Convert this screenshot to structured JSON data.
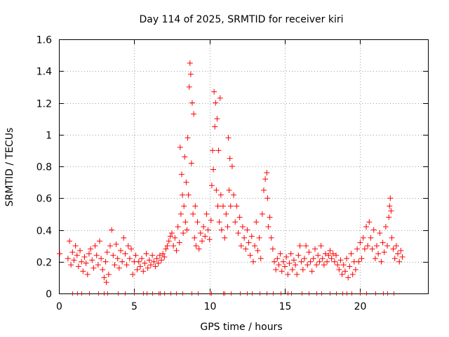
{
  "chart_data": {
    "type": "scatter",
    "title": "Day 114 of 2025, SRMTID for receiver kiri",
    "xlabel": "GPS time / hours",
    "ylabel": "SRMTID / TECUs",
    "xlim": [
      0,
      24.5
    ],
    "ylim": [
      0,
      1.6
    ],
    "x_ticks": [
      0,
      5,
      10,
      15,
      20
    ],
    "x_tick_labels": [
      "0",
      "5",
      "10",
      "15",
      "20"
    ],
    "y_ticks": [
      0,
      0.2,
      0.4,
      0.6,
      0.8,
      1.0,
      1.2,
      1.4,
      1.6
    ],
    "y_tick_labels": [
      "0",
      "0.2",
      "0.4",
      "0.6",
      "0.8",
      "1",
      "1.2",
      "1.4",
      "1.6"
    ],
    "grid": true,
    "marker": "+",
    "color": "#ff0000",
    "series": [
      {
        "name": "SRMTID",
        "points": [
          [
            0.05,
            0.25
          ],
          [
            0.6,
            0.22
          ],
          [
            0.7,
            0.33
          ],
          [
            0.8,
            0.18
          ],
          [
            0.9,
            0.26
          ],
          [
            1.0,
            0.21
          ],
          [
            1.1,
            0.3
          ],
          [
            1.2,
            0.24
          ],
          [
            1.3,
            0.17
          ],
          [
            1.4,
            0.27
          ],
          [
            1.5,
            0.2
          ],
          [
            1.6,
            0.14
          ],
          [
            1.7,
            0.23
          ],
          [
            1.8,
            0.19
          ],
          [
            1.9,
            0.12
          ],
          [
            2.0,
            0.25
          ],
          [
            2.1,
            0.28
          ],
          [
            2.2,
            0.21
          ],
          [
            2.3,
            0.16
          ],
          [
            2.4,
            0.3
          ],
          [
            2.5,
            0.24
          ],
          [
            2.6,
            0.18
          ],
          [
            2.7,
            0.33
          ],
          [
            2.8,
            0.22
          ],
          [
            2.9,
            0.15
          ],
          [
            3.0,
            0.1
          ],
          [
            3.1,
            0.2
          ],
          [
            3.15,
            0.07
          ],
          [
            3.2,
            0.26
          ],
          [
            3.3,
            0.12
          ],
          [
            3.4,
            0.3
          ],
          [
            3.5,
            0.4
          ],
          [
            3.6,
            0.24
          ],
          [
            3.7,
            0.18
          ],
          [
            3.8,
            0.31
          ],
          [
            3.9,
            0.22
          ],
          [
            4.0,
            0.16
          ],
          [
            4.1,
            0.27
          ],
          [
            4.2,
            0.2
          ],
          [
            4.3,
            0.35
          ],
          [
            4.4,
            0.25
          ],
          [
            4.5,
            0.18
          ],
          [
            4.6,
            0.3
          ],
          [
            4.7,
            0.22
          ],
          [
            4.8,
            0.28
          ],
          [
            4.9,
            0.12
          ],
          [
            5.0,
            0.2
          ],
          [
            5.1,
            0.24
          ],
          [
            5.2,
            0.15
          ],
          [
            5.3,
            0.2
          ],
          [
            5.4,
            0.17
          ],
          [
            5.5,
            0.22
          ],
          [
            5.6,
            0.14
          ],
          [
            5.7,
            0.19
          ],
          [
            5.8,
            0.25
          ],
          [
            5.9,
            0.16
          ],
          [
            6.0,
            0.21
          ],
          [
            6.1,
            0.18
          ],
          [
            6.2,
            0.24
          ],
          [
            6.3,
            0.2
          ],
          [
            6.4,
            0.17
          ],
          [
            6.5,
            0.22
          ],
          [
            6.6,
            0.19
          ],
          [
            6.7,
            0.24
          ],
          [
            6.8,
            0.21
          ],
          [
            6.9,
            0.25
          ],
          [
            7.0,
            0.23
          ],
          [
            7.1,
            0.28
          ],
          [
            7.2,
            0.3
          ],
          [
            7.3,
            0.33
          ],
          [
            7.4,
            0.36
          ],
          [
            7.5,
            0.38
          ],
          [
            7.6,
            0.3
          ],
          [
            7.7,
            0.35
          ],
          [
            7.8,
            0.27
          ],
          [
            7.9,
            0.42
          ],
          [
            8.0,
            0.32
          ],
          [
            8.05,
            0.92
          ],
          [
            8.1,
            0.5
          ],
          [
            8.15,
            0.75
          ],
          [
            8.2,
            0.62
          ],
          [
            8.25,
            0.38
          ],
          [
            8.3,
            0.55
          ],
          [
            8.35,
            0.86
          ],
          [
            8.4,
            0.45
          ],
          [
            8.45,
            0.7
          ],
          [
            8.5,
            0.4
          ],
          [
            8.55,
            0.98
          ],
          [
            8.6,
            0.62
          ],
          [
            8.65,
            1.3
          ],
          [
            8.7,
            1.45
          ],
          [
            8.75,
            1.38
          ],
          [
            8.8,
            0.82
          ],
          [
            8.85,
            1.2
          ],
          [
            8.9,
            0.5
          ],
          [
            8.95,
            1.13
          ],
          [
            9.0,
            0.35
          ],
          [
            9.05,
            0.55
          ],
          [
            9.1,
            0.3
          ],
          [
            9.2,
            0.45
          ],
          [
            9.3,
            0.28
          ],
          [
            9.4,
            0.38
          ],
          [
            9.5,
            0.33
          ],
          [
            9.6,
            0.42
          ],
          [
            9.7,
            0.36
          ],
          [
            9.8,
            0.5
          ],
          [
            9.9,
            0.4
          ],
          [
            10.0,
            0.34
          ],
          [
            10.1,
            0.46
          ],
          [
            10.15,
            0.68
          ],
          [
            10.2,
            0.9
          ],
          [
            10.25,
            0.78
          ],
          [
            10.3,
            1.27
          ],
          [
            10.35,
            1.05
          ],
          [
            10.4,
            1.2
          ],
          [
            10.45,
            0.65
          ],
          [
            10.5,
            1.1
          ],
          [
            10.55,
            0.55
          ],
          [
            10.6,
            0.9
          ],
          [
            10.65,
            0.45
          ],
          [
            10.7,
            1.23
          ],
          [
            10.75,
            0.62
          ],
          [
            10.8,
            0.4
          ],
          [
            10.9,
            0.55
          ],
          [
            11.0,
            0.35
          ],
          [
            11.1,
            0.5
          ],
          [
            11.2,
            0.42
          ],
          [
            11.25,
            0.98
          ],
          [
            11.3,
            0.65
          ],
          [
            11.35,
            0.85
          ],
          [
            11.4,
            0.55
          ],
          [
            11.5,
            0.8
          ],
          [
            11.6,
            0.62
          ],
          [
            11.7,
            0.45
          ],
          [
            11.8,
            0.55
          ],
          [
            11.9,
            0.38
          ],
          [
            12.0,
            0.48
          ],
          [
            12.1,
            0.3
          ],
          [
            12.2,
            0.42
          ],
          [
            12.3,
            0.35
          ],
          [
            12.4,
            0.28
          ],
          [
            12.5,
            0.4
          ],
          [
            12.6,
            0.32
          ],
          [
            12.7,
            0.24
          ],
          [
            12.8,
            0.36
          ],
          [
            12.9,
            0.2
          ],
          [
            13.0,
            0.3
          ],
          [
            13.1,
            0.45
          ],
          [
            13.2,
            0.27
          ],
          [
            13.3,
            0.35
          ],
          [
            13.4,
            0.22
          ],
          [
            13.5,
            0.5
          ],
          [
            13.6,
            0.65
          ],
          [
            13.7,
            0.72
          ],
          [
            13.8,
            0.76
          ],
          [
            13.85,
            0.6
          ],
          [
            13.9,
            0.42
          ],
          [
            14.0,
            0.48
          ],
          [
            14.1,
            0.35
          ],
          [
            14.2,
            0.28
          ],
          [
            14.3,
            0.2
          ],
          [
            14.4,
            0.15
          ],
          [
            14.5,
            0.22
          ],
          [
            14.6,
            0.18
          ],
          [
            14.7,
            0.25
          ],
          [
            14.8,
            0.14
          ],
          [
            14.9,
            0.2
          ],
          [
            15.0,
            0.17
          ],
          [
            15.1,
            0.23
          ],
          [
            15.2,
            0.12
          ],
          [
            15.3,
            0.19
          ],
          [
            15.4,
            0.25
          ],
          [
            15.5,
            0.15
          ],
          [
            15.6,
            0.21
          ],
          [
            15.7,
            0.18
          ],
          [
            15.8,
            0.12
          ],
          [
            15.9,
            0.24
          ],
          [
            16.0,
            0.3
          ],
          [
            16.1,
            0.2
          ],
          [
            16.2,
            0.15
          ],
          [
            16.3,
            0.22
          ],
          [
            16.4,
            0.3
          ],
          [
            16.5,
            0.18
          ],
          [
            16.6,
            0.26
          ],
          [
            16.7,
            0.2
          ],
          [
            16.8,
            0.14
          ],
          [
            16.9,
            0.22
          ],
          [
            17.0,
            0.28
          ],
          [
            17.1,
            0.18
          ],
          [
            17.2,
            0.24
          ],
          [
            17.3,
            0.2
          ],
          [
            17.4,
            0.3
          ],
          [
            17.5,
            0.22
          ],
          [
            17.6,
            0.18
          ],
          [
            17.7,
            0.25
          ],
          [
            17.8,
            0.2
          ],
          [
            17.9,
            0.24
          ],
          [
            18.0,
            0.27
          ],
          [
            18.1,
            0.22
          ],
          [
            18.2,
            0.25
          ],
          [
            18.3,
            0.2
          ],
          [
            18.4,
            0.24
          ],
          [
            18.5,
            0.18
          ],
          [
            18.6,
            0.15
          ],
          [
            18.7,
            0.21
          ],
          [
            18.8,
            0.12
          ],
          [
            18.9,
            0.18
          ],
          [
            19.0,
            0.14
          ],
          [
            19.1,
            0.22
          ],
          [
            19.2,
            0.1
          ],
          [
            19.3,
            0.17
          ],
          [
            19.4,
            0.25
          ],
          [
            19.5,
            0.12
          ],
          [
            19.6,
            0.2
          ],
          [
            19.7,
            0.15
          ],
          [
            19.8,
            0.28
          ],
          [
            19.9,
            0.2
          ],
          [
            20.0,
            0.32
          ],
          [
            20.1,
            0.22
          ],
          [
            20.2,
            0.35
          ],
          [
            20.3,
            0.28
          ],
          [
            20.4,
            0.42
          ],
          [
            20.5,
            0.3
          ],
          [
            20.6,
            0.45
          ],
          [
            20.7,
            0.35
          ],
          [
            20.8,
            0.28
          ],
          [
            20.9,
            0.4
          ],
          [
            21.0,
            0.22
          ],
          [
            21.1,
            0.3
          ],
          [
            21.2,
            0.25
          ],
          [
            21.3,
            0.38
          ],
          [
            21.4,
            0.2
          ],
          [
            21.5,
            0.32
          ],
          [
            21.6,
            0.26
          ],
          [
            21.7,
            0.42
          ],
          [
            21.8,
            0.3
          ],
          [
            21.9,
            0.48
          ],
          [
            21.95,
            0.55
          ],
          [
            22.0,
            0.6
          ],
          [
            22.05,
            0.52
          ],
          [
            22.1,
            0.35
          ],
          [
            22.2,
            0.28
          ],
          [
            22.3,
            0.22
          ],
          [
            22.4,
            0.3
          ],
          [
            22.5,
            0.25
          ],
          [
            22.6,
            0.2
          ],
          [
            22.7,
            0.27
          ],
          [
            22.8,
            0.23
          ]
        ]
      }
    ],
    "bottom_markers_x": [
      0.9,
      1.2,
      1.5,
      2.0,
      2.6,
      3.0,
      3.2,
      3.9,
      4.4,
      5.0,
      5.6,
      5.8,
      6.2,
      6.6,
      6.7,
      7.0,
      7.4,
      7.8,
      8.2,
      8.8,
      9.2,
      10.0,
      10.1,
      10.9,
      11.0,
      11.4,
      12.0,
      12.5,
      12.8,
      13.3,
      13.8,
      14.2,
      14.7,
      15.2,
      15.4,
      16.1,
      16.6,
      17.1,
      17.4,
      18.0,
      18.4,
      18.8,
      19.1,
      19.4,
      20.0,
      20.4,
      21.0,
      21.5,
      21.8,
      22.2
    ]
  }
}
